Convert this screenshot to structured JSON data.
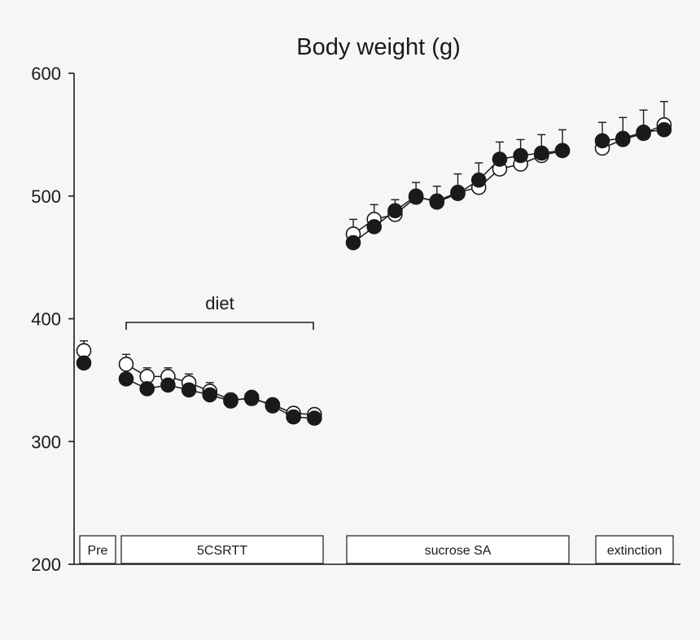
{
  "chart_data": {
    "type": "line",
    "title": "Body weight (g)",
    "xlabel": "",
    "ylabel": "",
    "ylim": [
      200,
      600
    ],
    "yticks": [
      200,
      300,
      400,
      500,
      600
    ],
    "annotation": "diet",
    "phases": [
      {
        "name": "Pre",
        "first_session": 1,
        "last_session": 1
      },
      {
        "name": "5CSRTT",
        "first_session": 2,
        "last_session": 11
      },
      {
        "name": "sucrose SA",
        "first_session": 12,
        "last_session": 22
      },
      {
        "name": "extinction",
        "first_session": 23,
        "last_session": 26
      }
    ],
    "diet_range": [
      2,
      11
    ],
    "series": [
      {
        "name": "open circles",
        "marker": "open",
        "segments": [
          {
            "phase": "Pre",
            "values": [
              374
            ],
            "errors": [
              8
            ]
          },
          {
            "phase": "5CSRTT",
            "values": [
              363,
              353,
              353,
              348,
              341,
              334,
              335,
              330,
              323,
              322
            ],
            "errors": [
              8,
              7,
              7,
              7,
              7,
              5,
              5,
              5,
              5,
              4
            ]
          },
          {
            "phase": "sucrose SA",
            "values": [
              469,
              481,
              485,
              499,
              496,
              503,
              507,
              522,
              526,
              533,
              537
            ],
            "errors": [
              12,
              12,
              12,
              12,
              12,
              15,
              20,
              22,
              20,
              17,
              17
            ]
          },
          {
            "phase": "extinction",
            "values": [
              539,
              546,
              551,
              558
            ],
            "errors": [
              21,
              18,
              19,
              19
            ]
          }
        ]
      },
      {
        "name": "filled circles",
        "marker": "filled",
        "segments": [
          {
            "phase": "Pre",
            "values": [
              364
            ],
            "errors": [
              0
            ]
          },
          {
            "phase": "5CSRTT",
            "values": [
              351,
              343,
              346,
              342,
              338,
              333,
              336,
              329,
              320,
              319
            ],
            "errors": [
              0,
              0,
              0,
              0,
              0,
              0,
              0,
              0,
              0,
              0
            ]
          },
          {
            "phase": "sucrose SA",
            "values": [
              462,
              475,
              488,
              500,
              495,
              502,
              513,
              530,
              533,
              535,
              537
            ],
            "errors": [
              0,
              0,
              0,
              0,
              0,
              0,
              0,
              0,
              0,
              0,
              0
            ]
          },
          {
            "phase": "extinction",
            "values": [
              545,
              547,
              552,
              554
            ],
            "errors": [
              0,
              0,
              0,
              0
            ]
          }
        ]
      }
    ]
  }
}
